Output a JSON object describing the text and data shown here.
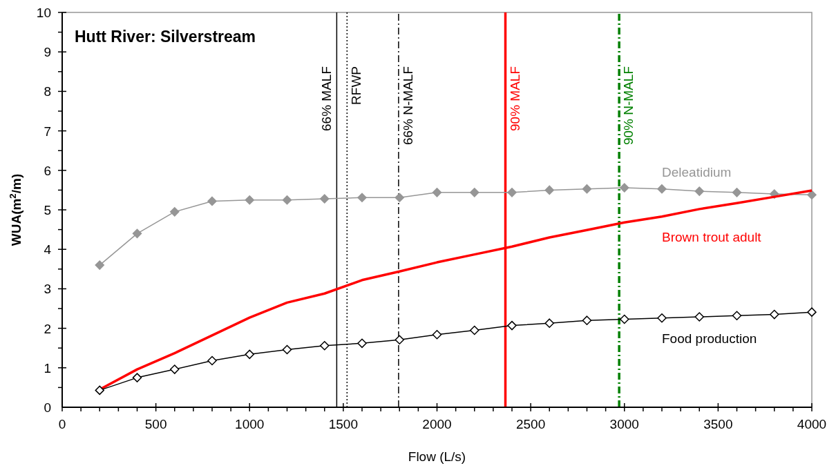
{
  "chart_data": {
    "type": "line",
    "title": "Hutt River: Silverstream",
    "xlabel": "Flow (L/s)",
    "ylabel": "WUA(m$^{2}$/m)",
    "x": [
      200,
      400,
      600,
      800,
      1000,
      1200,
      1400,
      1600,
      1800,
      2000,
      2200,
      2400,
      2600,
      2800,
      3000,
      3200,
      3400,
      3600,
      3800,
      4000
    ],
    "series": [
      {
        "name": "Deleatidium",
        "color": "#969696",
        "marker": "diamond",
        "values": [
          3.6,
          4.4,
          4.95,
          5.22,
          5.25,
          5.25,
          5.28,
          5.31,
          5.31,
          5.44,
          5.44,
          5.44,
          5.5,
          5.53,
          5.56,
          5.53,
          5.47,
          5.44,
          5.4,
          5.38
        ]
      },
      {
        "name": "Brown trout adult",
        "color": "#ff0000",
        "marker": "none",
        "values": [
          0.45,
          0.96,
          1.37,
          1.82,
          2.27,
          2.65,
          2.88,
          3.22,
          3.44,
          3.67,
          3.87,
          4.07,
          4.3,
          4.49,
          4.68,
          4.83,
          5.02,
          5.17,
          5.33,
          5.49
        ]
      },
      {
        "name": "Food production",
        "color": "#000000",
        "marker": "diamond",
        "values": [
          0.43,
          0.75,
          0.96,
          1.18,
          1.34,
          1.46,
          1.56,
          1.62,
          1.71,
          1.84,
          1.95,
          2.07,
          2.13,
          2.2,
          2.23,
          2.26,
          2.29,
          2.32,
          2.35,
          2.41
        ]
      }
    ],
    "xlim": [
      0,
      4000
    ],
    "xticks": [
      0,
      {
        "value": 100,
        "label": null
      },
      {
        "value": 200,
        "label": null
      },
      {
        "value": 300,
        "label": null
      },
      {
        "value": 400,
        "label": null
      },
      500,
      {
        "value": 600,
        "label": null
      },
      {
        "value": 700,
        "label": null
      },
      {
        "value": 800,
        "label": null
      },
      {
        "value": 900,
        "label": null
      },
      1000,
      {
        "value": 1100,
        "label": null
      },
      {
        "value": 1200,
        "label": null
      },
      {
        "value": 1300,
        "label": null
      },
      {
        "value": 1400,
        "label": null
      },
      1500,
      {
        "value": 1600,
        "label": null
      },
      {
        "value": 1700,
        "label": null
      },
      {
        "value": 1800,
        "label": null
      },
      {
        "value": 1900,
        "label": null
      },
      2000,
      {
        "value": 2100,
        "label": null
      },
      {
        "value": 2200,
        "label": null
      },
      {
        "value": 2300,
        "label": null
      },
      {
        "value": 2400,
        "label": null
      },
      2500,
      {
        "value": 2600,
        "label": null
      },
      {
        "value": 2700,
        "label": null
      },
      {
        "value": 2800,
        "label": null
      },
      {
        "value": 2900,
        "label": null
      },
      3000,
      {
        "value": 3100,
        "label": null
      },
      {
        "value": 3200,
        "label": null
      },
      {
        "value": 3300,
        "label": null
      },
      {
        "value": 3400,
        "label": null
      },
      3500,
      {
        "value": 3600,
        "label": null
      },
      {
        "value": 3700,
        "label": null
      },
      {
        "value": 3800,
        "label": null
      },
      {
        "value": 3900,
        "label": null
      },
      4000
    ],
    "ylim": [
      0,
      10
    ],
    "yticks": [
      0,
      {
        "value": 0.5,
        "label": null
      },
      1,
      {
        "value": 1.5,
        "label": null
      },
      2,
      {
        "value": 2.5,
        "label": null
      },
      3,
      {
        "value": 3.5,
        "label": null
      },
      4,
      {
        "value": 4.5,
        "label": null
      },
      5,
      {
        "value": 5.5,
        "label": null
      },
      6,
      {
        "value": 6.5,
        "label": null
      },
      7,
      {
        "value": 7.5,
        "label": null
      },
      8,
      {
        "value": 8.5,
        "label": null
      },
      9,
      {
        "value": 9.5,
        "label": null
      },
      10
    ],
    "ref_lines": [
      {
        "axis": "x",
        "value": 1465,
        "label": "66% MALF",
        "color": "#000000",
        "line_style": "solid"
      },
      {
        "axis": "x",
        "value": 1520,
        "label": "RFWP",
        "color": "#000000",
        "line_style": "dotted"
      },
      {
        "axis": "x",
        "value": 1795,
        "label": "66% N-MALF",
        "color": "#000000",
        "line_style": "dashed"
      },
      {
        "axis": "x",
        "value": 2365,
        "label": "90% MALF",
        "color": "#ff0000",
        "line_style": "solid"
      },
      {
        "axis": "x",
        "value": 2972,
        "label": "90% N-MALF",
        "color": "#008000",
        "line_style": "dashed"
      }
    ],
    "grid": false,
    "legend": false
  }
}
